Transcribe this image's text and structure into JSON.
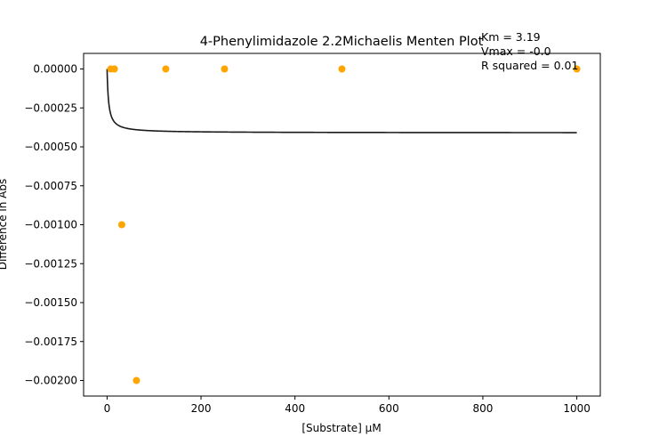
{
  "chart_data": {
    "type": "scatter",
    "title": "4-Phenylimidazole 2.2Michaelis Menten Plot",
    "xlabel": "[Substrate] µM",
    "ylabel": "Difference in Abs",
    "xlim": [
      -50,
      1050
    ],
    "ylim": [
      -0.0021,
      0.0001
    ],
    "x_ticks": [
      0,
      200,
      400,
      600,
      800,
      1000
    ],
    "x_tick_labels": [
      "0",
      "200",
      "400",
      "600",
      "800",
      "1000"
    ],
    "y_ticks": [
      0,
      -0.00025,
      -0.0005,
      -0.00075,
      -0.001,
      -0.00125,
      -0.0015,
      -0.00175,
      -0.002
    ],
    "y_tick_labels": [
      "0.00000",
      "−0.00025",
      "−0.00050",
      "−0.00075",
      "−0.00100",
      "−0.00125",
      "−0.00150",
      "−0.00175",
      "−0.00200"
    ],
    "grid": false,
    "points": {
      "x": [
        7.8,
        15.6,
        31.25,
        62.5,
        125,
        250,
        500,
        1000
      ],
      "y": [
        0,
        0,
        -0.001,
        -0.002,
        0,
        0,
        0,
        0
      ],
      "color": "#ffa500"
    },
    "fit": {
      "model": "michaelis-menten",
      "km": 3.19,
      "vmax": -0.00041,
      "color": "#1a1a1a"
    },
    "annotations": [
      "Km = 3.19",
      "Vmax = -0.0",
      "R squared = 0.01"
    ]
  }
}
